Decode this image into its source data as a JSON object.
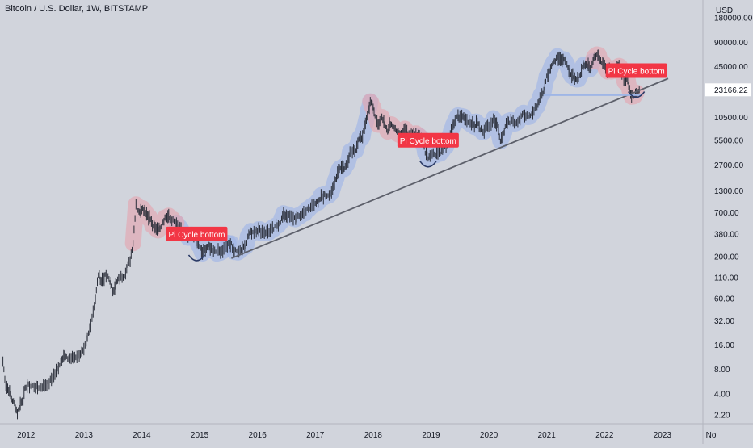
{
  "header": {
    "title": "Bitcoin / U.S. Dollar, 1W, BITSTAMP",
    "currency": "USD"
  },
  "price_badge": "23166.22",
  "colors": {
    "background": "#d1d4dc",
    "candle": "#2a2e39",
    "halo_blue": "#9fb6e6",
    "halo_red": "#e4a6b0",
    "trendline": "#5d606b",
    "label_bg": "#f23645",
    "label_text": "#ffffff",
    "badge_bg": "#ffffff"
  },
  "annotations": [
    {
      "label": "Pi Cycle bottom",
      "date": 2014.95,
      "price": 380
    },
    {
      "label": "Pi Cycle bottom",
      "date": 2018.95,
      "price": 5500
    },
    {
      "label": "Pi Cycle bottom",
      "date": 2022.55,
      "price": 40000
    }
  ],
  "chart_data": {
    "type": "line",
    "title": "Bitcoin / U.S. Dollar, 1W, BITSTAMP",
    "xlabel": "",
    "ylabel": "USD",
    "yscale": "log",
    "xlim": [
      2011.55,
      2023.7
    ],
    "ylim": [
      1.7,
      300000
    ],
    "x_ticks": [
      "2012",
      "2013",
      "2014",
      "2015",
      "2016",
      "2017",
      "2018",
      "2019",
      "2020",
      "2021",
      "2022",
      "2023",
      "No"
    ],
    "y_ticks": [
      "180000.00",
      "90000.00",
      "45000.00",
      "23166.22",
      "10500.00",
      "5500.00",
      "2700.00",
      "1300.00",
      "700.00",
      "380.00",
      "200.00",
      "110.00",
      "60.00",
      "32.00",
      "16.00",
      "8.00",
      "4.00",
      "2.20"
    ],
    "grid": false,
    "series": [
      {
        "values": [
          [
            2011.6,
            10
          ],
          [
            2011.65,
            5
          ],
          [
            2011.7,
            4.5
          ],
          [
            2011.75,
            3.5
          ],
          [
            2011.8,
            3.0
          ],
          [
            2011.85,
            2.3
          ],
          [
            2011.9,
            3.0
          ],
          [
            2011.95,
            3.5
          ],
          [
            2012.0,
            5.0
          ],
          [
            2012.1,
            5.0
          ],
          [
            2012.2,
            4.8
          ],
          [
            2012.3,
            5.0
          ],
          [
            2012.4,
            5.5
          ],
          [
            2012.5,
            7.0
          ],
          [
            2012.6,
            10
          ],
          [
            2012.65,
            12
          ],
          [
            2012.7,
            11
          ],
          [
            2012.8,
            11
          ],
          [
            2012.9,
            12
          ],
          [
            2013.0,
            13.5
          ],
          [
            2013.1,
            25
          ],
          [
            2013.2,
            60
          ],
          [
            2013.25,
            120
          ],
          [
            2013.3,
            100
          ],
          [
            2013.35,
            110
          ],
          [
            2013.4,
            120
          ],
          [
            2013.45,
            100
          ],
          [
            2013.5,
            75
          ],
          [
            2013.55,
            90
          ],
          [
            2013.6,
            105
          ],
          [
            2013.7,
            120
          ],
          [
            2013.8,
            180
          ],
          [
            2013.85,
            300
          ],
          [
            2013.9,
            900
          ],
          [
            2013.95,
            700
          ],
          [
            2014.0,
            800
          ],
          [
            2014.05,
            750
          ],
          [
            2014.1,
            650
          ],
          [
            2014.15,
            580
          ],
          [
            2014.2,
            450
          ],
          [
            2014.25,
            450
          ],
          [
            2014.3,
            440
          ],
          [
            2014.35,
            520
          ],
          [
            2014.4,
            600
          ],
          [
            2014.45,
            620
          ],
          [
            2014.5,
            590
          ],
          [
            2014.6,
            500
          ],
          [
            2014.7,
            400
          ],
          [
            2014.8,
            340
          ],
          [
            2014.9,
            370
          ],
          [
            2015.0,
            260
          ],
          [
            2015.05,
            220
          ],
          [
            2015.1,
            250
          ],
          [
            2015.15,
            270
          ],
          [
            2015.2,
            250
          ],
          [
            2015.3,
            230
          ],
          [
            2015.4,
            240
          ],
          [
            2015.5,
            280
          ],
          [
            2015.55,
            280
          ],
          [
            2015.6,
            230
          ],
          [
            2015.7,
            240
          ],
          [
            2015.8,
            280
          ],
          [
            2015.85,
            380
          ],
          [
            2015.9,
            400
          ],
          [
            2016.0,
            430
          ],
          [
            2016.1,
            400
          ],
          [
            2016.2,
            410
          ],
          [
            2016.3,
            450
          ],
          [
            2016.4,
            550
          ],
          [
            2016.45,
            650
          ],
          [
            2016.5,
            650
          ],
          [
            2016.6,
            600
          ],
          [
            2016.7,
            610
          ],
          [
            2016.8,
            700
          ],
          [
            2016.9,
            780
          ],
          [
            2017.0,
            950
          ],
          [
            2017.05,
            900
          ],
          [
            2017.1,
            1100
          ],
          [
            2017.2,
            1150
          ],
          [
            2017.3,
            1300
          ],
          [
            2017.35,
            1800
          ],
          [
            2017.4,
            2400
          ],
          [
            2017.45,
            2600
          ],
          [
            2017.5,
            2500
          ],
          [
            2017.55,
            2800
          ],
          [
            2017.6,
            4000
          ],
          [
            2017.7,
            4300
          ],
          [
            2017.75,
            5500
          ],
          [
            2017.8,
            6000
          ],
          [
            2017.85,
            7500
          ],
          [
            2017.9,
            11000
          ],
          [
            2017.95,
            17000
          ],
          [
            2018.0,
            14000
          ],
          [
            2018.05,
            10000
          ],
          [
            2018.1,
            8500
          ],
          [
            2018.15,
            11000
          ],
          [
            2018.2,
            9000
          ],
          [
            2018.25,
            7000
          ],
          [
            2018.3,
            9000
          ],
          [
            2018.35,
            8500
          ],
          [
            2018.4,
            7500
          ],
          [
            2018.45,
            6500
          ],
          [
            2018.5,
            6500
          ],
          [
            2018.55,
            7500
          ],
          [
            2018.6,
            6500
          ],
          [
            2018.7,
            6500
          ],
          [
            2018.8,
            6300
          ],
          [
            2018.85,
            5500
          ],
          [
            2018.9,
            4000
          ],
          [
            2018.95,
            3400
          ],
          [
            2019.0,
            3700
          ],
          [
            2019.1,
            3800
          ],
          [
            2019.2,
            4100
          ],
          [
            2019.3,
            5300
          ],
          [
            2019.35,
            7500
          ],
          [
            2019.4,
            8500
          ],
          [
            2019.45,
            11000
          ],
          [
            2019.5,
            10500
          ],
          [
            2019.55,
            11000
          ],
          [
            2019.6,
            10000
          ],
          [
            2019.7,
            9000
          ],
          [
            2019.75,
            8300
          ],
          [
            2019.8,
            9200
          ],
          [
            2019.85,
            7500
          ],
          [
            2019.9,
            7200
          ],
          [
            2020.0,
            8500
          ],
          [
            2020.1,
            10000
          ],
          [
            2020.15,
            8500
          ],
          [
            2020.2,
            5500
          ],
          [
            2020.25,
            6800
          ],
          [
            2020.3,
            8800
          ],
          [
            2020.4,
            9500
          ],
          [
            2020.5,
            9200
          ],
          [
            2020.6,
            11500
          ],
          [
            2020.7,
            10800
          ],
          [
            2020.8,
            13500
          ],
          [
            2020.85,
            16000
          ],
          [
            2020.9,
            19000
          ],
          [
            2020.95,
            23000
          ],
          [
            2021.0,
            33000
          ],
          [
            2021.05,
            38000
          ],
          [
            2021.1,
            47000
          ],
          [
            2021.15,
            55000
          ],
          [
            2021.2,
            58000
          ],
          [
            2021.25,
            55000
          ],
          [
            2021.3,
            57000
          ],
          [
            2021.35,
            50000
          ],
          [
            2021.4,
            37000
          ],
          [
            2021.45,
            35000
          ],
          [
            2021.5,
            33000
          ],
          [
            2021.55,
            32000
          ],
          [
            2021.6,
            40000
          ],
          [
            2021.65,
            47000
          ],
          [
            2021.7,
            47000
          ],
          [
            2021.75,
            43000
          ],
          [
            2021.8,
            55000
          ],
          [
            2021.85,
            62000
          ],
          [
            2021.9,
            60000
          ],
          [
            2021.95,
            49000
          ],
          [
            2022.0,
            46000
          ],
          [
            2022.05,
            38000
          ],
          [
            2022.1,
            42000
          ],
          [
            2022.15,
            39000
          ],
          [
            2022.2,
            42000
          ],
          [
            2022.25,
            45000
          ],
          [
            2022.3,
            39000
          ],
          [
            2022.35,
            30000
          ],
          [
            2022.4,
            29500
          ],
          [
            2022.45,
            20000
          ],
          [
            2022.5,
            20000
          ],
          [
            2022.55,
            21000
          ],
          [
            2022.6,
            23166.22
          ]
        ]
      }
    ],
    "trendlines": [
      {
        "style": "support",
        "from": [
          2015.55,
          190
        ],
        "to": [
          2023.1,
          32000
        ]
      },
      {
        "style": "horizontal-band",
        "from": [
          2020.95,
          20000
        ],
        "to": [
          2022.65,
          20000
        ]
      }
    ]
  }
}
